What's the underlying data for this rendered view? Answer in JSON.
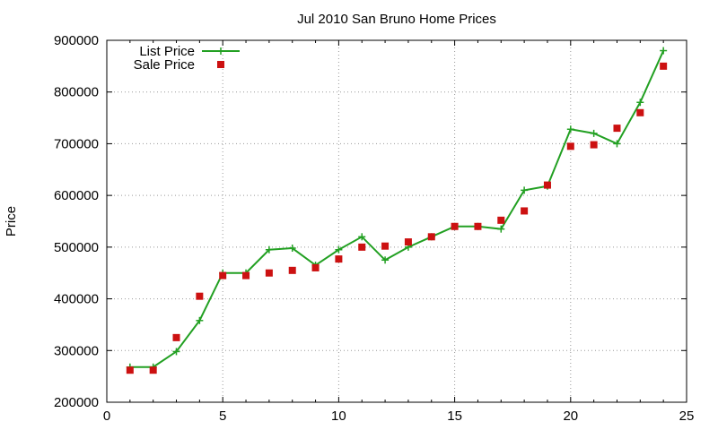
{
  "chart_data": {
    "type": "line",
    "title": "Jul 2010 San Bruno Home Prices",
    "xlabel": "",
    "ylabel": "Price",
    "xlim": [
      0,
      25
    ],
    "ylim": [
      200000,
      900000
    ],
    "x_ticks": [
      0,
      5,
      10,
      15,
      20,
      25
    ],
    "y_ticks": [
      200000,
      300000,
      400000,
      500000,
      600000,
      700000,
      800000,
      900000
    ],
    "grid": true,
    "legend_position": "top-left",
    "x": [
      1,
      2,
      3,
      4,
      5,
      6,
      7,
      8,
      9,
      10,
      11,
      12,
      13,
      14,
      15,
      16,
      17,
      18,
      19,
      20,
      21,
      22,
      23,
      24
    ],
    "series": [
      {
        "name": "List Price",
        "style": "line-plus",
        "color": "#22a022",
        "values": [
          268000,
          268000,
          298000,
          358000,
          450000,
          450000,
          495000,
          498000,
          465000,
          495000,
          520000,
          475000,
          500000,
          520000,
          540000,
          540000,
          535000,
          610000,
          618000,
          728000,
          720000,
          700000,
          780000,
          880000
        ]
      },
      {
        "name": "Sale Price",
        "style": "square-marker",
        "color": "#cc1111",
        "values": [
          262000,
          262000,
          325000,
          405000,
          445000,
          445000,
          450000,
          455000,
          460000,
          477000,
          500000,
          502000,
          510000,
          520000,
          540000,
          540000,
          552000,
          570000,
          620000,
          695000,
          698000,
          730000,
          760000,
          850000
        ]
      }
    ]
  }
}
